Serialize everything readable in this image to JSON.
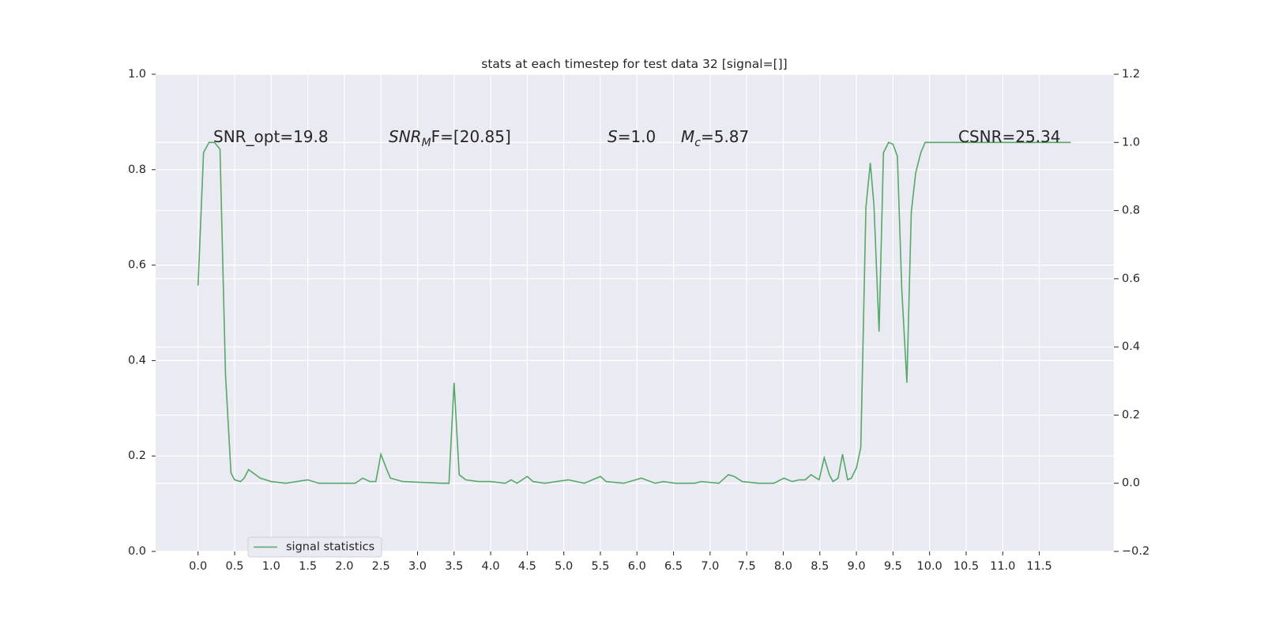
{
  "chart_data": {
    "type": "line",
    "title": "stats at each timestep for test data 32 [signal=[]]",
    "annotations": [
      {
        "text": "SNR_opt=19.8"
      },
      {
        "base": "SNR",
        "sub": "M",
        "tail": "F=[20.85]"
      },
      {
        "base": "S",
        "tail": "=1.0"
      },
      {
        "base": "M",
        "sub": "c",
        "tail": "=5.87"
      },
      {
        "text": "CSNR=25.34"
      }
    ],
    "x": [
      0,
      0.075,
      0.15,
      0.225,
      0.3,
      0.375,
      0.45,
      0.5,
      0.58,
      0.63,
      0.69,
      0.85,
      1.0,
      1.2,
      1.5,
      1.65,
      2.15,
      2.25,
      2.35,
      2.43,
      2.5,
      2.58,
      2.63,
      2.8,
      3.33,
      3.43,
      3.5,
      3.57,
      3.66,
      3.83,
      4.0,
      4.2,
      4.28,
      4.36,
      4.5,
      4.58,
      4.74,
      5.06,
      5.28,
      5.5,
      5.58,
      5.82,
      6.06,
      6.25,
      6.36,
      6.52,
      6.79,
      6.88,
      7.12,
      7.25,
      7.33,
      7.44,
      7.66,
      7.87,
      8.01,
      8.12,
      8.22,
      8.3,
      8.38,
      8.49,
      8.56,
      8.63,
      8.68,
      8.75,
      8.81,
      8.88,
      8.93,
      9.0,
      9.06,
      9.13,
      9.19,
      9.24,
      9.31,
      9.37,
      9.44,
      9.5,
      9.56,
      9.62,
      9.69,
      9.75,
      9.81,
      9.88,
      9.94,
      11.93
    ],
    "series": [
      {
        "name": "signal statistics",
        "color": "#55a868",
        "axis": "y2",
        "values": [
          0.58,
          0.97,
          1.0,
          1.0,
          0.98,
          0.32,
          0.03,
          0.01,
          0.005,
          0.015,
          0.04,
          0.015,
          0.005,
          0.0,
          0.01,
          0.0,
          0.0,
          0.015,
          0.005,
          0.005,
          0.085,
          0.04,
          0.015,
          0.005,
          0.0,
          0.0,
          0.295,
          0.025,
          0.01,
          0.005,
          0.005,
          0.0,
          0.01,
          0.0,
          0.02,
          0.005,
          0.0,
          0.01,
          0.0,
          0.02,
          0.005,
          0.0,
          0.015,
          0.0,
          0.005,
          0.0,
          0.0,
          0.005,
          0.0,
          0.025,
          0.02,
          0.005,
          0.0,
          0.0,
          0.015,
          0.005,
          0.01,
          0.01,
          0.025,
          0.01,
          0.075,
          0.025,
          0.005,
          0.015,
          0.085,
          0.01,
          0.015,
          0.045,
          0.105,
          0.81,
          0.94,
          0.815,
          0.445,
          0.97,
          1.0,
          0.995,
          0.96,
          0.57,
          0.295,
          0.795,
          0.91,
          0.97,
          1.0,
          1.0
        ]
      }
    ],
    "xlim": [
      -0.58,
      12.52
    ],
    "xticks": [
      {
        "value": 0,
        "label": "0.0"
      },
      0.5,
      {
        "value": 1,
        "label": "1.0"
      },
      1.5,
      {
        "value": 2,
        "label": "2.0"
      },
      2.5,
      {
        "value": 3,
        "label": "3.0"
      },
      3.5,
      {
        "value": 4,
        "label": "4.0"
      },
      4.5,
      {
        "value": 5,
        "label": "5.0"
      },
      5.5,
      {
        "value": 6,
        "label": "6.0"
      },
      6.5,
      {
        "value": 7,
        "label": "7.0"
      },
      7.5,
      {
        "value": 8,
        "label": "8.0"
      },
      8.5,
      {
        "value": 9,
        "label": "9.0"
      },
      9.5,
      {
        "value": 10,
        "label": "10.0"
      },
      10.5,
      {
        "value": 11,
        "label": "11.0"
      },
      11.5
    ],
    "ylim": [
      0,
      1
    ],
    "yticks": [
      {
        "value": 0,
        "label": "0.0"
      },
      0.2,
      0.4,
      0.6,
      0.8,
      {
        "value": 1,
        "label": "1.0"
      }
    ],
    "y2lim": [
      -0.2,
      1.2
    ],
    "y2ticks": [
      {
        "value": -0.2,
        "label": "−0.2"
      },
      {
        "value": 0,
        "label": "0.0"
      },
      0.2,
      0.4,
      0.6,
      0.8,
      {
        "value": 1,
        "label": "1.0"
      },
      1.2
    ],
    "grid": true,
    "legend": "lower left"
  }
}
